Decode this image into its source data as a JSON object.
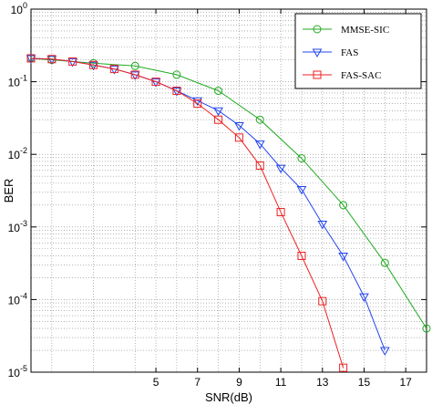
{
  "chart_data": {
    "type": "line",
    "title": "",
    "xlabel": "SNR(dB)",
    "ylabel": "BER",
    "xlim": [
      -1,
      18
    ],
    "ylim": [
      1e-05,
      1
    ],
    "yscale": "log",
    "grid": true,
    "legend_position": "top-right",
    "x_ticks": [
      5,
      7,
      9,
      11,
      13,
      15,
      17
    ],
    "y_ticks": [
      {
        "value": 1,
        "base": "10",
        "exp": "0"
      },
      {
        "value": 0.1,
        "base": "10",
        "exp": "-1"
      },
      {
        "value": 0.01,
        "base": "10",
        "exp": "-2"
      },
      {
        "value": 0.001,
        "base": "10",
        "exp": "-3"
      },
      {
        "value": 0.0001,
        "base": "10",
        "exp": "-4"
      },
      {
        "value": 1e-05,
        "base": "10",
        "exp": "-5"
      }
    ],
    "series": [
      {
        "name": "MMSE-SIC",
        "color": "#22aa22",
        "marker": "circle",
        "x": [
          -1,
          0,
          2,
          4,
          6,
          8,
          10,
          12,
          14,
          16,
          18
        ],
        "y": [
          0.21,
          0.2,
          0.18,
          0.165,
          0.125,
          0.075,
          0.03,
          0.0088,
          0.002,
          0.00032,
          4e-05
        ]
      },
      {
        "name": "FAS",
        "color": "#2244ee",
        "marker": "triangle-down",
        "x": [
          -1,
          0,
          1,
          2,
          3,
          4,
          5,
          6,
          7,
          8,
          9,
          10,
          11,
          12,
          13,
          14,
          15,
          16
        ],
        "y": [
          0.21,
          0.205,
          0.19,
          0.17,
          0.15,
          0.125,
          0.1,
          0.075,
          0.055,
          0.04,
          0.025,
          0.014,
          0.0065,
          0.0033,
          0.0011,
          0.0004,
          0.00011,
          2e-05
        ]
      },
      {
        "name": "FAS-SAC",
        "color": "#ee2222",
        "marker": "square",
        "x": [
          -1,
          0,
          1,
          2,
          3,
          4,
          5,
          6,
          7,
          8,
          9,
          10,
          11,
          12,
          13,
          14
        ],
        "y": [
          0.21,
          0.205,
          0.19,
          0.17,
          0.15,
          0.125,
          0.1,
          0.075,
          0.05,
          0.03,
          0.017,
          0.007,
          0.0016,
          0.0004,
          9.5e-05,
          1.15e-05
        ]
      }
    ]
  }
}
